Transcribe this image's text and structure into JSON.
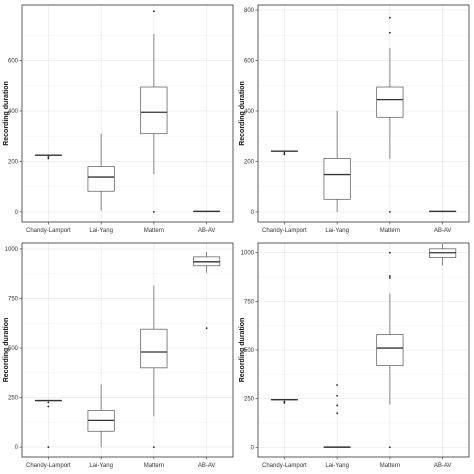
{
  "chart_data": [
    {
      "type": "box",
      "ylabel": "Recording duration",
      "categories": [
        "Chandy-Lamport",
        "Lai-Yang",
        "Mattern",
        "AB-AV"
      ],
      "ylim": [
        -40,
        820
      ],
      "yticks": [
        0,
        200,
        400,
        600
      ],
      "grid": true,
      "legend": "none",
      "boxes": [
        {
          "min": 222,
          "q1": 224,
          "median": 225,
          "q3": 226,
          "max": 228,
          "outliers": [
            212,
            218
          ]
        },
        {
          "min": 5,
          "q1": 82,
          "median": 138,
          "q3": 180,
          "max": 310,
          "outliers": []
        },
        {
          "min": 150,
          "q1": 310,
          "median": 395,
          "q3": 495,
          "max": 705,
          "outliers": [
            0,
            795
          ]
        },
        {
          "min": 0,
          "q1": 1,
          "median": 2,
          "q3": 3,
          "max": 4,
          "outliers": []
        }
      ]
    },
    {
      "type": "box",
      "ylabel": "Recording duration",
      "categories": [
        "Chandy-Lamport",
        "Lai-Yang",
        "Mattern",
        "AB-AV"
      ],
      "ylim": [
        -40,
        820
      ],
      "yticks": [
        0,
        200,
        400,
        600,
        800
      ],
      "grid": true,
      "legend": "none",
      "boxes": [
        {
          "min": 238,
          "q1": 240,
          "median": 241,
          "q3": 242,
          "max": 244,
          "outliers": [
            228,
            234
          ]
        },
        {
          "min": 0,
          "q1": 50,
          "median": 148,
          "q3": 212,
          "max": 400,
          "outliers": []
        },
        {
          "min": 210,
          "q1": 375,
          "median": 445,
          "q3": 495,
          "max": 650,
          "outliers": [
            0,
            710,
            770
          ]
        },
        {
          "min": 0,
          "q1": 1,
          "median": 2,
          "q3": 3,
          "max": 4,
          "outliers": []
        }
      ]
    },
    {
      "type": "box",
      "ylabel": "Recording duration",
      "categories": [
        "Chandy-Lamport",
        "Lai-Yang",
        "Mattern",
        "AB-AV"
      ],
      "ylim": [
        -50,
        1030
      ],
      "yticks": [
        0,
        250,
        500,
        750,
        1000
      ],
      "grid": true,
      "legend": "none",
      "boxes": [
        {
          "min": 232,
          "q1": 234,
          "median": 235,
          "q3": 236,
          "max": 238,
          "outliers": [
            0,
            205,
            225
          ]
        },
        {
          "min": 0,
          "q1": 80,
          "median": 135,
          "q3": 185,
          "max": 315,
          "outliers": []
        },
        {
          "min": 155,
          "q1": 400,
          "median": 480,
          "q3": 595,
          "max": 815,
          "outliers": [
            0
          ]
        },
        {
          "min": 880,
          "q1": 915,
          "median": 935,
          "q3": 960,
          "max": 985,
          "outliers": [
            600
          ]
        }
      ]
    },
    {
      "type": "box",
      "ylabel": "Recording duration",
      "categories": [
        "Chandy-Lamport",
        "Lai-Yang",
        "Mattern",
        "AB-AV"
      ],
      "ylim": [
        -50,
        1050
      ],
      "yticks": [
        0,
        250,
        500,
        750,
        1000
      ],
      "grid": true,
      "legend": "none",
      "boxes": [
        {
          "min": 242,
          "q1": 244,
          "median": 245,
          "q3": 246,
          "max": 248,
          "outliers": [
            228,
            235
          ]
        },
        {
          "min": 0,
          "q1": 0,
          "median": 1,
          "q3": 2,
          "max": 3,
          "outliers": [
            175,
            215,
            265,
            320
          ]
        },
        {
          "min": 220,
          "q1": 420,
          "median": 510,
          "q3": 580,
          "max": 790,
          "outliers": [
            0,
            870,
            880,
            1000
          ]
        },
        {
          "min": 935,
          "q1": 975,
          "median": 1000,
          "q3": 1020,
          "max": 1045,
          "outliers": []
        }
      ]
    }
  ]
}
